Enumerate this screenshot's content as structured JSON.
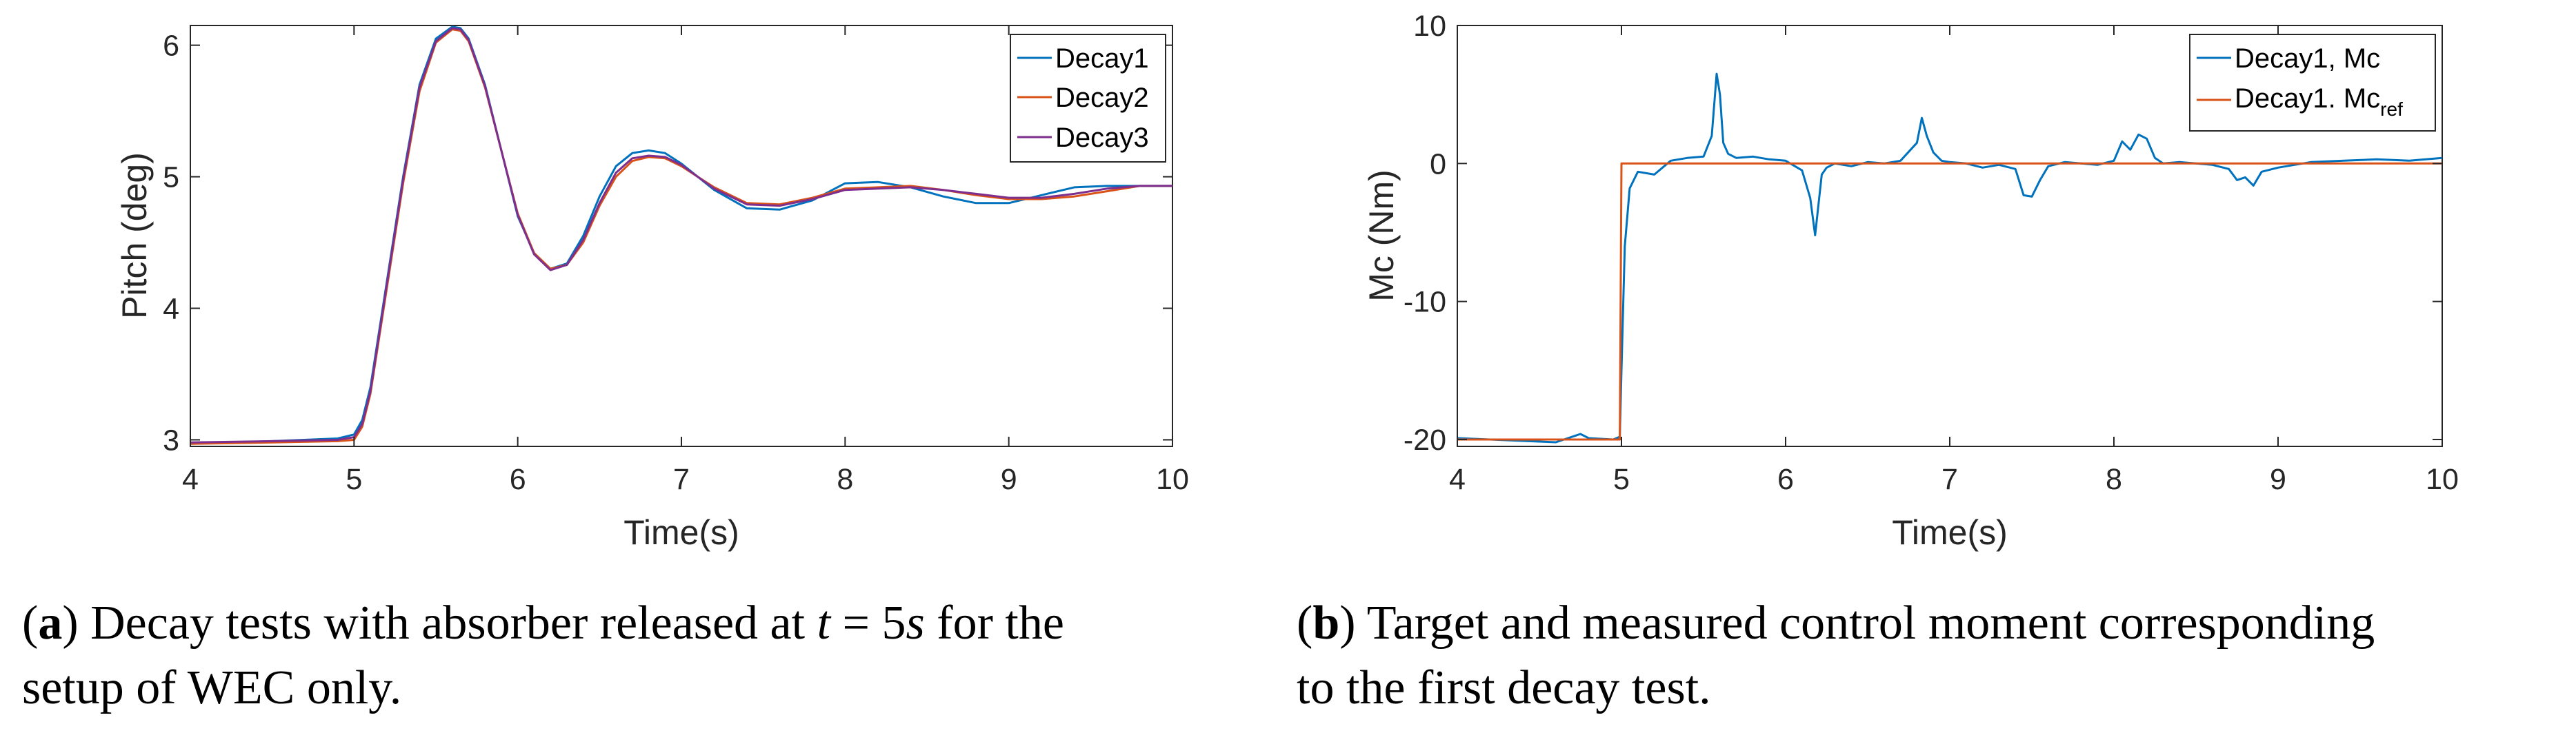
{
  "chart_data": [
    {
      "type": "line",
      "panel": "a",
      "xlabel": "Time(s)",
      "ylabel": "Pitch (deg)",
      "xlim": [
        4,
        10
      ],
      "ylim": [
        2.95,
        6.15
      ],
      "xticks": [
        4,
        5,
        6,
        7,
        8,
        9,
        10
      ],
      "yticks": [
        3,
        4,
        5,
        6
      ],
      "grid": false,
      "legend_position": "top-right",
      "series": [
        {
          "name": "Decay1",
          "color": "#0072BD",
          "x": [
            4,
            4.5,
            4.9,
            5.0,
            5.05,
            5.1,
            5.2,
            5.3,
            5.4,
            5.5,
            5.6,
            5.65,
            5.7,
            5.8,
            5.9,
            6.0,
            6.1,
            6.2,
            6.3,
            6.4,
            6.5,
            6.6,
            6.7,
            6.8,
            6.9,
            7.0,
            7.1,
            7.2,
            7.4,
            7.6,
            7.8,
            8.0,
            8.2,
            8.4,
            8.6,
            8.8,
            9.0,
            9.2,
            9.4,
            9.6,
            9.8,
            10.0
          ],
          "y": [
            2.97,
            2.99,
            3.01,
            3.04,
            3.15,
            3.4,
            4.2,
            5.0,
            5.7,
            6.05,
            6.14,
            6.13,
            6.05,
            5.7,
            5.2,
            4.7,
            4.42,
            4.3,
            4.34,
            4.55,
            4.85,
            5.08,
            5.18,
            5.2,
            5.18,
            5.1,
            5.0,
            4.9,
            4.76,
            4.75,
            4.82,
            4.95,
            4.96,
            4.92,
            4.85,
            4.8,
            4.8,
            4.86,
            4.92,
            4.93,
            4.93,
            4.93
          ]
        },
        {
          "name": "Decay2",
          "color": "#D95319",
          "x": [
            4,
            4.5,
            4.9,
            5.0,
            5.05,
            5.1,
            5.2,
            5.3,
            5.4,
            5.5,
            5.6,
            5.65,
            5.7,
            5.8,
            5.9,
            6.0,
            6.1,
            6.2,
            6.3,
            6.4,
            6.5,
            6.6,
            6.7,
            6.8,
            6.9,
            7.0,
            7.1,
            7.2,
            7.4,
            7.6,
            7.8,
            8.0,
            8.2,
            8.4,
            8.6,
            8.8,
            9.0,
            9.2,
            9.4,
            9.6,
            9.8,
            10.0
          ],
          "y": [
            2.97,
            2.98,
            2.99,
            3.0,
            3.1,
            3.35,
            4.15,
            4.95,
            5.65,
            6.02,
            6.12,
            6.11,
            6.03,
            5.68,
            5.2,
            4.72,
            4.42,
            4.3,
            4.33,
            4.5,
            4.78,
            5.0,
            5.12,
            5.15,
            5.14,
            5.08,
            5.0,
            4.92,
            4.8,
            4.79,
            4.84,
            4.91,
            4.92,
            4.93,
            4.9,
            4.86,
            4.83,
            4.83,
            4.85,
            4.89,
            4.93,
            4.93
          ]
        },
        {
          "name": "Decay3",
          "color": "#7E2F8E",
          "x": [
            4,
            4.5,
            4.9,
            5.0,
            5.05,
            5.1,
            5.2,
            5.3,
            5.4,
            5.5,
            5.6,
            5.65,
            5.7,
            5.8,
            5.9,
            6.0,
            6.1,
            6.2,
            6.3,
            6.4,
            6.5,
            6.6,
            6.7,
            6.8,
            6.9,
            7.0,
            7.1,
            7.2,
            7.4,
            7.6,
            7.8,
            8.0,
            8.2,
            8.4,
            8.6,
            8.8,
            9.0,
            9.2,
            9.4,
            9.6,
            9.8,
            10.0
          ],
          "y": [
            2.98,
            2.99,
            3.0,
            3.02,
            3.12,
            3.37,
            4.18,
            4.98,
            5.68,
            6.03,
            6.13,
            6.12,
            6.04,
            5.69,
            5.2,
            4.71,
            4.41,
            4.29,
            4.33,
            4.52,
            4.8,
            5.03,
            5.14,
            5.16,
            5.15,
            5.09,
            5.0,
            4.91,
            4.79,
            4.78,
            4.83,
            4.9,
            4.91,
            4.92,
            4.9,
            4.87,
            4.84,
            4.84,
            4.87,
            4.91,
            4.93,
            4.93
          ]
        }
      ]
    },
    {
      "type": "line",
      "panel": "b",
      "xlabel": "Time(s)",
      "ylabel": "Mc (Nm)",
      "xlim": [
        4,
        10
      ],
      "ylim": [
        -20.5,
        10
      ],
      "xticks": [
        4,
        5,
        6,
        7,
        8,
        9,
        10
      ],
      "yticks": [
        -20,
        -10,
        0,
        10
      ],
      "ytick_labels": [
        "-20",
        "-10",
        "0",
        "10"
      ],
      "grid": false,
      "legend_position": "top-right",
      "series": [
        {
          "name": "Decay1, Mc",
          "color": "#0072BD",
          "x": [
            4,
            4.2,
            4.4,
            4.6,
            4.75,
            4.8,
            4.95,
            4.99,
            5.0,
            5.02,
            5.05,
            5.1,
            5.2,
            5.3,
            5.4,
            5.5,
            5.55,
            5.58,
            5.6,
            5.62,
            5.65,
            5.7,
            5.8,
            5.9,
            6.0,
            6.1,
            6.15,
            6.18,
            6.2,
            6.22,
            6.25,
            6.3,
            6.4,
            6.5,
            6.6,
            6.7,
            6.8,
            6.83,
            6.86,
            6.9,
            6.95,
            7.0,
            7.1,
            7.2,
            7.3,
            7.4,
            7.45,
            7.5,
            7.55,
            7.6,
            7.7,
            7.8,
            7.9,
            8.0,
            8.05,
            8.1,
            8.15,
            8.2,
            8.25,
            8.3,
            8.4,
            8.5,
            8.6,
            8.7,
            8.75,
            8.8,
            8.85,
            8.9,
            9.0,
            9.1,
            9.2,
            9.4,
            9.6,
            9.8,
            10.0
          ],
          "y": [
            -19.9,
            -20.0,
            -20.1,
            -20.2,
            -19.6,
            -19.9,
            -20.0,
            -19.8,
            -15.0,
            -6.0,
            -1.8,
            -0.6,
            -0.8,
            0.2,
            0.4,
            0.5,
            2.0,
            6.5,
            5.0,
            1.5,
            0.7,
            0.4,
            0.5,
            0.3,
            0.2,
            -0.5,
            -2.5,
            -5.2,
            -3.0,
            -0.8,
            -0.3,
            0.0,
            -0.2,
            0.1,
            0.0,
            0.2,
            1.5,
            3.3,
            2.0,
            0.8,
            0.2,
            0.1,
            0.0,
            -0.3,
            -0.1,
            -0.4,
            -2.3,
            -2.4,
            -1.2,
            -0.2,
            0.1,
            0.0,
            -0.1,
            0.2,
            1.6,
            1.0,
            2.1,
            1.8,
            0.4,
            0.0,
            0.1,
            0.0,
            -0.1,
            -0.4,
            -1.2,
            -1.0,
            -1.6,
            -0.6,
            -0.3,
            -0.1,
            0.1,
            0.2,
            0.3,
            0.2,
            0.4
          ]
        },
        {
          "name": "Decay1. Mc",
          "name_subscript": "ref",
          "color": "#D95319",
          "x": [
            4,
            4.99,
            5.0,
            10.0
          ],
          "y": [
            -20,
            -20,
            0,
            0
          ]
        }
      ]
    }
  ],
  "captions": [
    {
      "label": "a",
      "line1_pre": ") Decay tests with absorber released at ",
      "math_var": "t",
      "math_rest": " = 5",
      "math_unit": "s",
      "line1_post": " for the",
      "line2": "setup of WEC only."
    },
    {
      "label": "b",
      "line1": ") Target and measured control moment corresponding",
      "line2": "to the first decay test."
    }
  ]
}
